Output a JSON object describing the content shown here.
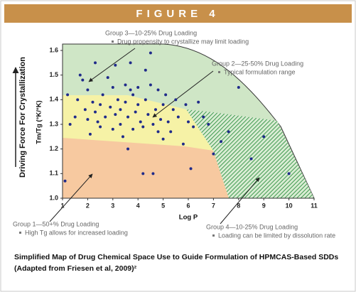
{
  "figure_label": "FIGURE 4",
  "caption": [
    "Simplified Map of Drug Chemical Space Use to Guide Formulation of HPMCAS-Based SDDs",
    "(Adapted from Friesen et al, 2009)²"
  ],
  "chart_data": {
    "type": "scatter",
    "x_label": "Log P",
    "y_label": "Tm/Tg (°K/°K)",
    "outer_label": "Driving Force For Crystallization",
    "xlim": [
      1,
      11
    ],
    "xticks": [
      1,
      2,
      3,
      4,
      5,
      6,
      7,
      8,
      9,
      10,
      11
    ],
    "ylim": [
      1.0,
      1.6
    ],
    "yticks": [
      {
        "value": 1.0,
        "label": "1.0"
      },
      1.1,
      1.2,
      1.3,
      1.4,
      1.5,
      1.6
    ],
    "color": "#1f2a8a",
    "annotations": [
      {
        "title": "Group 3—10-25% Drug Loading",
        "note": "Drug propensity to crystallize may limit loading"
      },
      {
        "title": "Group 2—25-50% Drug Loading",
        "note": "Typical formulation range"
      },
      {
        "title": "Group 1—50+% Drug Loading",
        "note": "High Tg allows for increased loading"
      },
      {
        "title": "Group 4—10-25% Drug Loading",
        "note": "Loading can be limited by dissolution rate"
      }
    ],
    "x": [
      1.1,
      1.2,
      1.3,
      1.5,
      1.6,
      1.7,
      1.8,
      1.9,
      2.0,
      2.0,
      2.1,
      2.2,
      2.3,
      2.4,
      2.5,
      2.5,
      2.6,
      2.7,
      2.8,
      2.9,
      3.0,
      3.0,
      3.1,
      3.1,
      3.2,
      3.3,
      3.3,
      3.4,
      3.5,
      3.5,
      3.6,
      3.6,
      3.7,
      3.8,
      3.8,
      3.9,
      4.0,
      4.0,
      4.1,
      4.2,
      4.2,
      4.3,
      4.3,
      4.4,
      4.5,
      4.5,
      4.6,
      4.6,
      4.7,
      4.8,
      4.8,
      4.9,
      5.0,
      5.0,
      5.1,
      5.2,
      5.3,
      5.4,
      5.5,
      5.6,
      5.8,
      5.9,
      6.0,
      6.1,
      6.2,
      6.4,
      6.6,
      6.8,
      7.0,
      7.3,
      7.6,
      8.0,
      8.5,
      9.0,
      10.0,
      2.3,
      3.7
    ],
    "values": [
      1.07,
      1.42,
      1.3,
      1.33,
      1.4,
      1.5,
      1.48,
      1.36,
      1.44,
      1.32,
      1.26,
      1.39,
      1.35,
      1.31,
      1.38,
      1.29,
      1.42,
      1.33,
      1.49,
      1.37,
      1.45,
      1.28,
      1.54,
      1.34,
      1.4,
      1.3,
      1.36,
      1.25,
      1.39,
      1.46,
      1.2,
      1.33,
      1.44,
      1.42,
      1.28,
      1.35,
      1.45,
      1.38,
      1.31,
      1.29,
      1.1,
      1.4,
      1.52,
      1.34,
      1.46,
      1.59,
      1.3,
      1.1,
      1.36,
      1.27,
      1.44,
      1.32,
      1.38,
      1.24,
      1.42,
      1.31,
      1.27,
      1.36,
      1.4,
      1.33,
      1.22,
      1.38,
      1.31,
      1.12,
      1.29,
      1.39,
      1.33,
      1.3,
      1.18,
      1.23,
      1.27,
      1.45,
      1.16,
      1.25,
      1.1,
      1.55,
      1.55
    ]
  }
}
